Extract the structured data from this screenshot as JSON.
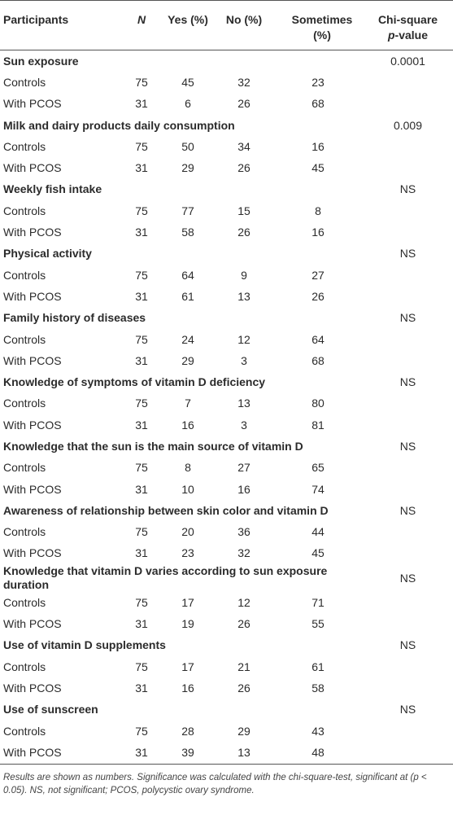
{
  "table": {
    "columns": [
      "Participants",
      "N",
      "Yes (%)",
      "No (%)",
      "Sometimes (%)",
      [
        "Chi-square",
        "p",
        "-value"
      ]
    ],
    "groups": [
      {
        "title": "Sun exposure",
        "p_value": "0.0001",
        "rows": [
          [
            "Controls",
            75,
            45,
            32,
            23
          ],
          [
            "With PCOS",
            31,
            6,
            26,
            68
          ]
        ]
      },
      {
        "title": "Milk and dairy products daily consumption",
        "p_value": "0.009",
        "rows": [
          [
            "Controls",
            75,
            50,
            34,
            16
          ],
          [
            "With PCOS",
            31,
            29,
            26,
            45
          ]
        ]
      },
      {
        "title": "Weekly fish intake",
        "p_value": "NS",
        "rows": [
          [
            "Controls",
            75,
            77,
            15,
            8
          ],
          [
            "With PCOS",
            31,
            58,
            26,
            16
          ]
        ]
      },
      {
        "title": "Physical activity",
        "p_value": "NS",
        "rows": [
          [
            "Controls",
            75,
            64,
            9,
            27
          ],
          [
            "With PCOS",
            31,
            61,
            13,
            26
          ]
        ]
      },
      {
        "title": "Family history of diseases",
        "p_value": "NS",
        "rows": [
          [
            "Controls",
            75,
            24,
            12,
            64
          ],
          [
            "With PCOS",
            31,
            29,
            3,
            68
          ]
        ]
      },
      {
        "title": "Knowledge of symptoms of vitamin D deficiency",
        "p_value": "NS",
        "rows": [
          [
            "Controls",
            75,
            7,
            13,
            80
          ],
          [
            "With PCOS",
            31,
            16,
            3,
            81
          ]
        ]
      },
      {
        "title": "Knowledge that the sun is the main source of vitamin D",
        "p_value": "NS",
        "rows": [
          [
            "Controls",
            75,
            8,
            27,
            65
          ],
          [
            "With PCOS",
            31,
            10,
            16,
            74
          ]
        ]
      },
      {
        "title": "Awareness of relationship between skin color and vitamin D",
        "p_value": "NS",
        "rows": [
          [
            "Controls",
            75,
            20,
            36,
            44
          ],
          [
            "With PCOS",
            31,
            23,
            32,
            45
          ]
        ]
      },
      {
        "title": "Knowledge that vitamin D varies according to sun exposure duration",
        "p_value": "NS",
        "rows": [
          [
            "Controls",
            75,
            17,
            12,
            71
          ],
          [
            "With PCOS",
            31,
            19,
            26,
            55
          ]
        ]
      },
      {
        "title": "Use of vitamin D supplements",
        "p_value": "NS",
        "rows": [
          [
            "Controls",
            75,
            17,
            21,
            61
          ],
          [
            "With PCOS",
            31,
            16,
            26,
            58
          ]
        ]
      },
      {
        "title": "Use of sunscreen",
        "p_value": "NS",
        "rows": [
          [
            "Controls",
            75,
            28,
            29,
            43
          ],
          [
            "With PCOS",
            31,
            39,
            13,
            48
          ]
        ]
      }
    ],
    "footnote": "Results are shown as numbers. Significance was calculated with the chi-square-test, significant at (p < 0.05). NS, not significant; PCOS, polycystic ovary syndrome."
  }
}
